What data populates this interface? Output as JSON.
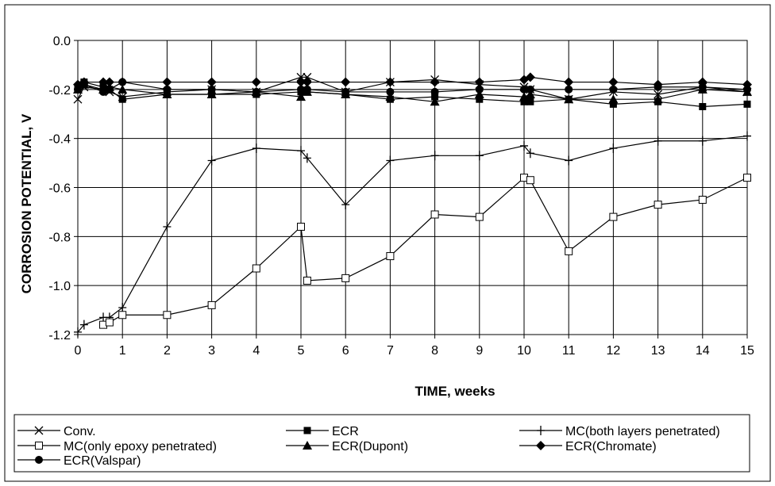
{
  "chart_data": {
    "type": "line",
    "title": "",
    "xlabel": "TIME, weeks",
    "ylabel": "CORROSION POTENTIAL, V",
    "xlim": [
      0,
      15
    ],
    "ylim": [
      -1.2,
      0.0
    ],
    "xticks": [
      "0",
      "1",
      "2",
      "3",
      "4",
      "5",
      "6",
      "7",
      "8",
      "9",
      "10",
      "11",
      "12",
      "13",
      "14",
      "15"
    ],
    "yticks": [
      "0.0",
      "-0.2",
      "-0.4",
      "-0.6",
      "-0.8",
      "-1.0",
      "-1.2"
    ],
    "grid": true,
    "legend_position": "bottom",
    "series": [
      {
        "name": "Conv.",
        "marker": "x",
        "x": [
          0,
          0.14,
          0.57,
          0.71,
          1,
          2,
          3,
          4,
          5,
          5.14,
          6,
          7,
          8,
          9,
          10,
          10.14,
          11,
          12,
          13,
          14,
          15
        ],
        "y": [
          -0.24,
          -0.19,
          -0.2,
          -0.21,
          -0.23,
          -0.21,
          -0.2,
          -0.21,
          -0.15,
          -0.15,
          -0.21,
          -0.17,
          -0.16,
          -0.18,
          -0.19,
          -0.2,
          -0.24,
          -0.21,
          -0.22,
          -0.19,
          -0.21
        ]
      },
      {
        "name": "ECR",
        "marker": "square-filled",
        "x": [
          0,
          0.14,
          0.57,
          0.71,
          1,
          2,
          3,
          4,
          5,
          5.14,
          6,
          7,
          8,
          9,
          10,
          10.14,
          11,
          12,
          13,
          14,
          15
        ],
        "y": [
          -0.19,
          -0.17,
          -0.19,
          -0.2,
          -0.24,
          -0.22,
          -0.22,
          -0.22,
          -0.21,
          -0.21,
          -0.22,
          -0.24,
          -0.23,
          -0.24,
          -0.25,
          -0.25,
          -0.24,
          -0.26,
          -0.25,
          -0.27,
          -0.26
        ]
      },
      {
        "name": "MC(both layers penetrated)",
        "marker": "plus",
        "x": [
          0,
          0.14,
          0.57,
          0.71,
          1,
          2,
          3,
          4,
          5,
          5.14,
          6,
          7,
          8,
          9,
          10,
          10.14,
          11,
          12,
          13,
          14,
          15
        ],
        "y": [
          -1.19,
          -1.16,
          -1.13,
          -1.13,
          -1.09,
          -0.76,
          -0.49,
          -0.44,
          -0.45,
          -0.48,
          -0.67,
          -0.49,
          -0.47,
          -0.47,
          -0.43,
          -0.46,
          -0.49,
          -0.44,
          -0.41,
          -0.41,
          -0.39
        ]
      },
      {
        "name": "MC(only epoxy penetrated)",
        "marker": "square-open",
        "x": [
          0.57,
          0.71,
          1,
          2,
          3,
          4,
          5,
          5.14,
          6,
          7,
          8,
          9,
          10,
          10.14,
          11,
          12,
          13,
          14,
          15
        ],
        "y": [
          -1.16,
          -1.15,
          -1.12,
          -1.12,
          -1.08,
          -0.93,
          -0.76,
          -0.98,
          -0.97,
          -0.88,
          -0.71,
          -0.72,
          -0.56,
          -0.57,
          -0.86,
          -0.72,
          -0.67,
          -0.65,
          -0.56
        ]
      },
      {
        "name": "ECR(Dupont)",
        "marker": "triangle",
        "x": [
          0,
          0.14,
          0.57,
          0.71,
          1,
          2,
          3,
          4,
          5,
          5.14,
          6,
          7,
          8,
          9,
          10,
          10.14,
          11,
          12,
          13,
          14,
          15
        ],
        "y": [
          -0.2,
          -0.18,
          -0.2,
          -0.19,
          -0.2,
          -0.22,
          -0.22,
          -0.21,
          -0.23,
          -0.21,
          -0.22,
          -0.23,
          -0.25,
          -0.22,
          -0.23,
          -0.22,
          -0.24,
          -0.24,
          -0.24,
          -0.2,
          -0.21
        ]
      },
      {
        "name": "ECR(Chromate)",
        "marker": "diamond",
        "x": [
          0,
          0.14,
          0.57,
          0.71,
          1,
          2,
          3,
          4,
          5,
          5.14,
          6,
          7,
          8,
          9,
          10,
          10.14,
          11,
          12,
          13,
          14,
          15
        ],
        "y": [
          -0.18,
          -0.17,
          -0.17,
          -0.17,
          -0.17,
          -0.17,
          -0.17,
          -0.17,
          -0.17,
          -0.17,
          -0.17,
          -0.17,
          -0.17,
          -0.17,
          -0.16,
          -0.15,
          -0.17,
          -0.17,
          -0.18,
          -0.17,
          -0.18
        ]
      },
      {
        "name": "ECR(Valspar)",
        "marker": "circle-filled",
        "x": [
          0,
          0.14,
          0.57,
          0.71,
          1,
          2,
          3,
          4,
          5,
          5.14,
          6,
          7,
          8,
          9,
          10,
          10.14,
          11,
          12,
          13,
          14,
          15
        ],
        "y": [
          -0.2,
          -0.18,
          -0.21,
          -0.2,
          -0.17,
          -0.2,
          -0.2,
          -0.21,
          -0.2,
          -0.2,
          -0.21,
          -0.21,
          -0.21,
          -0.2,
          -0.2,
          -0.2,
          -0.2,
          -0.2,
          -0.19,
          -0.19,
          -0.2
        ]
      }
    ]
  }
}
